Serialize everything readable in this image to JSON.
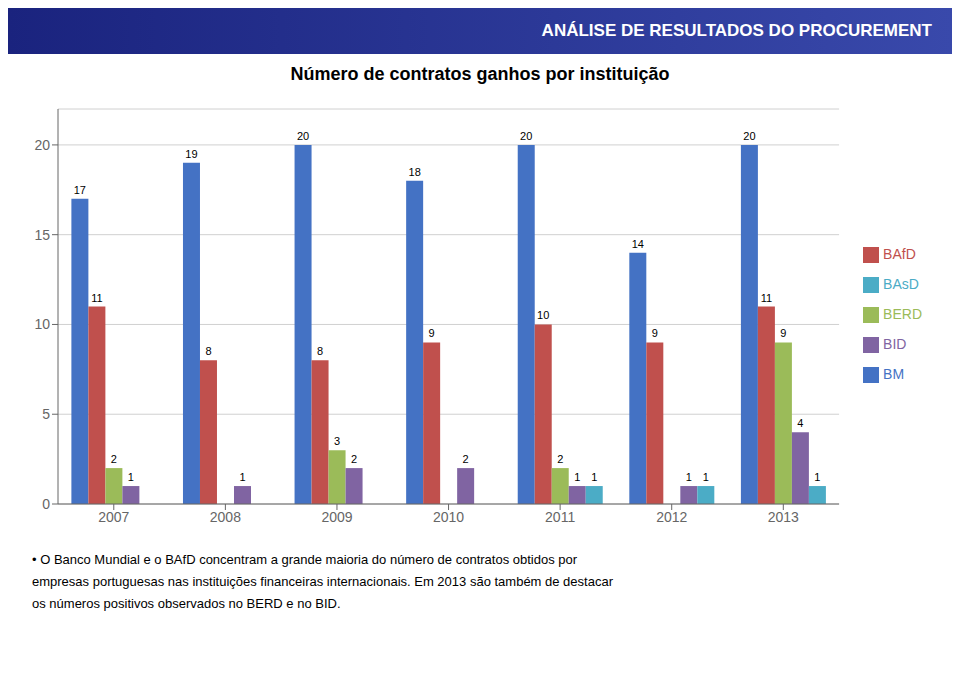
{
  "chart_data": {
    "type": "bar",
    "title": "Número de contratos ganhos por instituição",
    "subtitle": "ANÁLISE DE RESULTADOS DO PROCUREMENT",
    "annotations": [
      "• O Banco Mundial e o BAfD concentram a grande maioria do número de contratos obtidos por\nempresas portuguesas nas instituições financeiras internacionais. Em 2013 são também de destacar\nos números positivos observados no BERD e no BID."
    ],
    "categories": [
      "2007",
      "2008",
      "2009",
      "2010",
      "2011",
      "2012",
      "2013"
    ],
    "series": [
      {
        "name": "BM",
        "color": "#4472C4",
        "values": [
          17,
          19,
          20,
          18,
          20,
          14,
          20
        ]
      },
      {
        "name": "BAfD",
        "color": "#C0504D",
        "values": [
          11,
          8,
          8,
          9,
          10,
          9,
          11
        ]
      },
      {
        "name": "BERD",
        "color": "#9BBB59",
        "values": [
          2,
          0,
          3,
          0,
          2,
          0,
          9
        ]
      },
      {
        "name": "BID",
        "color": "#8064A2",
        "values": [
          1,
          1,
          2,
          2,
          1,
          1,
          4
        ]
      },
      {
        "name": "BAsD",
        "color": "#4BACC6",
        "values": [
          0,
          0,
          0,
          0,
          1,
          1,
          1
        ]
      }
    ],
    "ylim": [
      0,
      22
    ],
    "yticks": [
      0,
      5,
      10,
      15,
      20
    ],
    "grid": true,
    "legend": "right",
    "data_labels": true
  }
}
